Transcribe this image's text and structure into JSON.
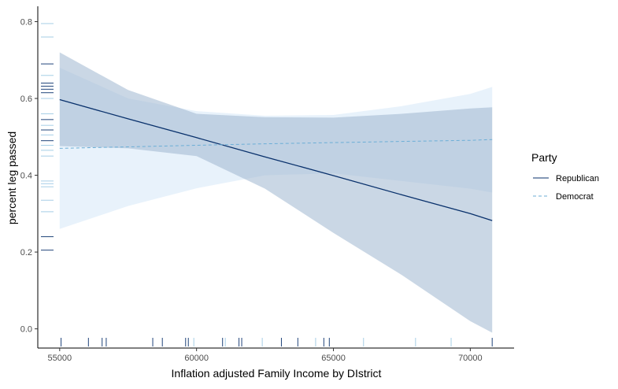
{
  "chart_data": {
    "type": "line",
    "xlabel": "Inflation adjusted Family Income by DIstrict",
    "ylabel": "percent leg passed",
    "xlim": [
      54200,
      71600
    ],
    "ylim": [
      -0.05,
      0.84
    ],
    "xticks": [
      55000,
      60000,
      65000,
      70000
    ],
    "yticks": [
      0.0,
      0.2,
      0.4,
      0.6,
      0.8
    ],
    "ytick_labels": [
      "0.0",
      "0.2",
      "0.4",
      "0.6",
      "0.8"
    ],
    "grid": false,
    "legend": {
      "title": "Party",
      "position": "right"
    },
    "series": [
      {
        "name": "Republican",
        "color": "#08306b",
        "band_color": "#9fb7cf",
        "line_style": "solid",
        "x": [
          55000,
          57500,
          60000,
          62500,
          65000,
          67500,
          70000,
          70800
        ],
        "values": [
          0.597,
          0.547,
          0.498,
          0.448,
          0.399,
          0.349,
          0.3,
          0.282
        ],
        "lower": [
          0.476,
          0.47,
          0.45,
          0.365,
          0.25,
          0.14,
          0.02,
          -0.01
        ],
        "upper": [
          0.72,
          0.622,
          0.56,
          0.551,
          0.55,
          0.56,
          0.574,
          0.577
        ]
      },
      {
        "name": "Democrat",
        "color": "#6baed6",
        "band_color": "#d6e8f7",
        "line_style": "dashed",
        "x": [
          55000,
          57500,
          60000,
          62500,
          65000,
          67500,
          70000,
          70800
        ],
        "values": [
          0.47,
          0.474,
          0.478,
          0.482,
          0.485,
          0.488,
          0.491,
          0.493
        ],
        "lower": [
          0.26,
          0.32,
          0.366,
          0.4,
          0.405,
          0.385,
          0.365,
          0.355
        ],
        "upper": [
          0.68,
          0.6,
          0.567,
          0.555,
          0.557,
          0.58,
          0.612,
          0.63
        ]
      }
    ],
    "rug_y": [
      {
        "v": 0.795,
        "party": "Democrat"
      },
      {
        "v": 0.76,
        "party": "Democrat"
      },
      {
        "v": 0.69,
        "party": "Republican"
      },
      {
        "v": 0.66,
        "party": "Democrat"
      },
      {
        "v": 0.64,
        "party": "Republican"
      },
      {
        "v": 0.632,
        "party": "Republican"
      },
      {
        "v": 0.624,
        "party": "Republican"
      },
      {
        "v": 0.615,
        "party": "Republican"
      },
      {
        "v": 0.6,
        "party": "Democrat"
      },
      {
        "v": 0.56,
        "party": "Democrat"
      },
      {
        "v": 0.545,
        "party": "Republican"
      },
      {
        "v": 0.53,
        "party": "Democrat"
      },
      {
        "v": 0.518,
        "party": "Republican"
      },
      {
        "v": 0.505,
        "party": "Democrat"
      },
      {
        "v": 0.49,
        "party": "Republican"
      },
      {
        "v": 0.478,
        "party": "Democrat"
      },
      {
        "v": 0.465,
        "party": "Democrat"
      },
      {
        "v": 0.45,
        "party": "Democrat"
      },
      {
        "v": 0.385,
        "party": "Democrat"
      },
      {
        "v": 0.378,
        "party": "Democrat"
      },
      {
        "v": 0.37,
        "party": "Democrat"
      },
      {
        "v": 0.335,
        "party": "Democrat"
      },
      {
        "v": 0.305,
        "party": "Democrat"
      },
      {
        "v": 0.24,
        "party": "Republican"
      },
      {
        "v": 0.205,
        "party": "Republican"
      }
    ],
    "rug_x": [
      {
        "v": 55050,
        "party": "Republican"
      },
      {
        "v": 56050,
        "party": "Republican"
      },
      {
        "v": 56550,
        "party": "Republican"
      },
      {
        "v": 56700,
        "party": "Republican"
      },
      {
        "v": 58400,
        "party": "Republican"
      },
      {
        "v": 58750,
        "party": "Republican"
      },
      {
        "v": 59600,
        "party": "Republican"
      },
      {
        "v": 59700,
        "party": "Republican"
      },
      {
        "v": 59900,
        "party": "Democrat"
      },
      {
        "v": 60950,
        "party": "Republican"
      },
      {
        "v": 61050,
        "party": "Democrat"
      },
      {
        "v": 61550,
        "party": "Republican"
      },
      {
        "v": 61650,
        "party": "Republican"
      },
      {
        "v": 62400,
        "party": "Democrat"
      },
      {
        "v": 63100,
        "party": "Republican"
      },
      {
        "v": 63700,
        "party": "Republican"
      },
      {
        "v": 64350,
        "party": "Democrat"
      },
      {
        "v": 64650,
        "party": "Republican"
      },
      {
        "v": 64850,
        "party": "Republican"
      },
      {
        "v": 66100,
        "party": "Democrat"
      },
      {
        "v": 68000,
        "party": "Democrat"
      },
      {
        "v": 69300,
        "party": "Democrat"
      },
      {
        "v": 70800,
        "party": "Republican"
      }
    ]
  }
}
